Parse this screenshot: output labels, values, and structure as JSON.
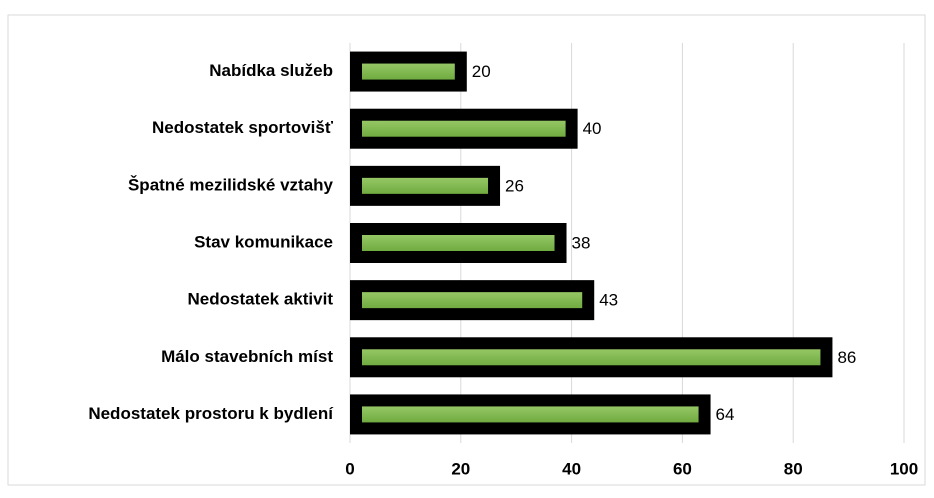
{
  "chart_data": {
    "type": "barh",
    "categories": [
      "Nabídka služeb",
      "Nedostatek sportovišť",
      "Špatné mezilidské vztahy",
      "Stav komunikace",
      "Nedostatek aktivit",
      "Málo stavebních míst",
      "Nedostatek prostoru k bydlení"
    ],
    "values": [
      20,
      40,
      26,
      38,
      43,
      86,
      64
    ],
    "color": "#7fb74a",
    "xlim": [
      0,
      100
    ],
    "xticks": [
      0,
      20,
      40,
      60,
      80,
      100
    ],
    "grid": true
  }
}
